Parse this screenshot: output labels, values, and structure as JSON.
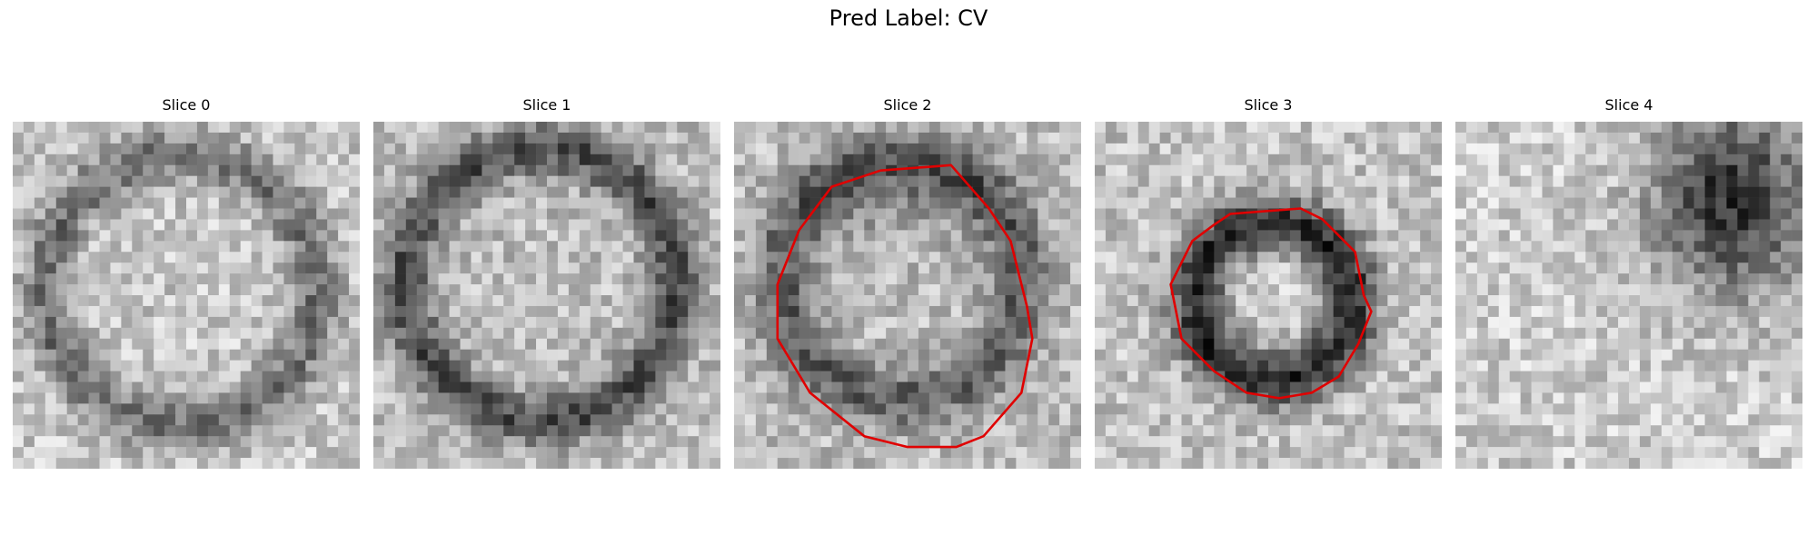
{
  "figure": {
    "title": "Pred Label: CV"
  },
  "panels": [
    {
      "title": "Slice 0",
      "has_contour": false
    },
    {
      "title": "Slice 1",
      "has_contour": false
    },
    {
      "title": "Slice 2",
      "has_contour": true
    },
    {
      "title": "Slice 3",
      "has_contour": true
    },
    {
      "title": "Slice 4",
      "has_contour": false
    }
  ],
  "colors": {
    "contour": "#e00000",
    "background": "#ffffff"
  }
}
